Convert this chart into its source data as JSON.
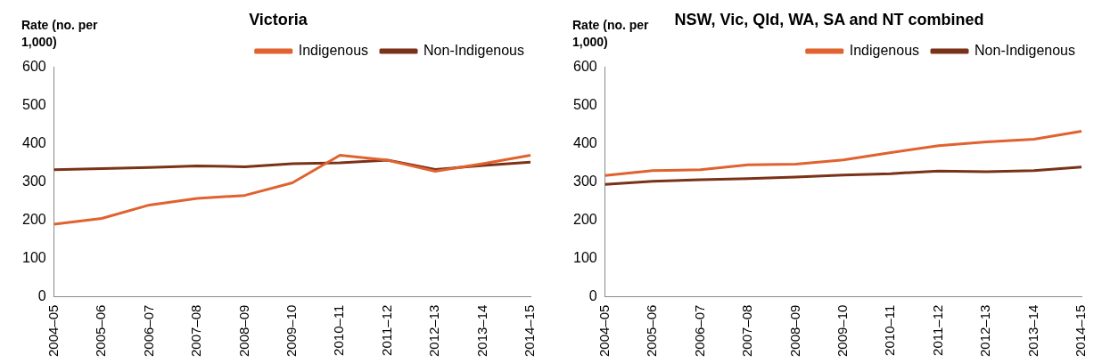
{
  "chart_data": [
    {
      "type": "line",
      "title": "Victoria",
      "ylabel": "Rate (no. per 1,000)",
      "categories": [
        "2004–05",
        "2005–06",
        "2006–07",
        "2007–08",
        "2008–09",
        "2009–10",
        "2010–11",
        "2011–12",
        "2012–13",
        "2013–14",
        "2014–15"
      ],
      "series": [
        {
          "name": "Indigenous",
          "color": "#e0622f",
          "values": [
            190,
            205,
            240,
            257,
            265,
            298,
            370,
            357,
            328,
            348,
            370
          ]
        },
        {
          "name": "Non-Indigenous",
          "color": "#7a3218",
          "values": [
            332,
            335,
            338,
            342,
            340,
            348,
            350,
            357,
            333,
            343,
            352
          ]
        }
      ],
      "ylim": [
        0,
        600
      ],
      "yticks": [
        0,
        100,
        200,
        300,
        400,
        500,
        600
      ],
      "grid": false,
      "legend": "top",
      "marker": "none"
    },
    {
      "type": "line",
      "title": "NSW, Vic, Qld, WA, SA and NT combined",
      "ylabel": "Rate (no. per 1,000)",
      "categories": [
        "2004–05",
        "2005–06",
        "2006–07",
        "2007–08",
        "2008–09",
        "2009–10",
        "2010–11",
        "2011–12",
        "2012–13",
        "2013–14",
        "2014–15"
      ],
      "series": [
        {
          "name": "Indigenous",
          "color": "#e0622f",
          "values": [
            317,
            330,
            332,
            345,
            347,
            358,
            377,
            395,
            405,
            412,
            433
          ]
        },
        {
          "name": "Non-Indigenous",
          "color": "#7a3218",
          "values": [
            294,
            302,
            306,
            309,
            313,
            318,
            322,
            329,
            327,
            330,
            339
          ]
        }
      ],
      "ylim": [
        0,
        600
      ],
      "yticks": [
        0,
        100,
        200,
        300,
        400,
        500,
        600
      ],
      "grid": false,
      "legend": "top",
      "marker": "none"
    }
  ]
}
